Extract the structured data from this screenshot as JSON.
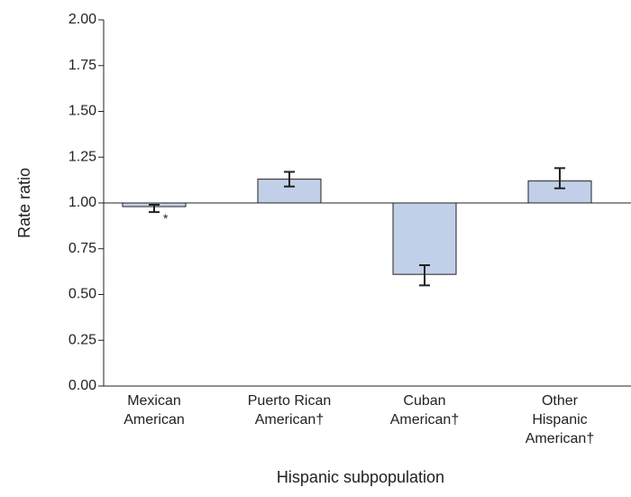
{
  "chart_data": {
    "type": "bar",
    "y_label": "Rate ratio",
    "x_label": "Hispanic subpopulation",
    "categories": [
      [
        "Mexican",
        "American"
      ],
      [
        "Puerto Rican",
        "American†"
      ],
      [
        "Cuban",
        "American†"
      ],
      [
        "Other",
        "Hispanic",
        "American†"
      ]
    ],
    "values": [
      0.98,
      1.13,
      0.61,
      1.12
    ],
    "ci_low": [
      0.95,
      1.09,
      0.55,
      1.08
    ],
    "ci_high": [
      0.99,
      1.17,
      0.66,
      1.19
    ],
    "value_notes": [
      "*",
      null,
      null,
      null
    ],
    "baseline": 1,
    "color": "#c2cfe8",
    "ylim": [
      0,
      2
    ],
    "yticks": [
      {
        "value": 0,
        "label": "0.00"
      },
      {
        "value": 0.25,
        "label": "0.25"
      },
      {
        "value": 0.5,
        "label": "0.50"
      },
      {
        "value": 0.75,
        "label": "0.75"
      },
      {
        "value": 1,
        "label": "1.00"
      },
      {
        "value": 1.25,
        "label": "1.25"
      },
      {
        "value": 1.5,
        "label": "1.50"
      },
      {
        "value": 1.75,
        "label": "1.75"
      },
      {
        "value": 2,
        "label": "2.00"
      }
    ]
  }
}
